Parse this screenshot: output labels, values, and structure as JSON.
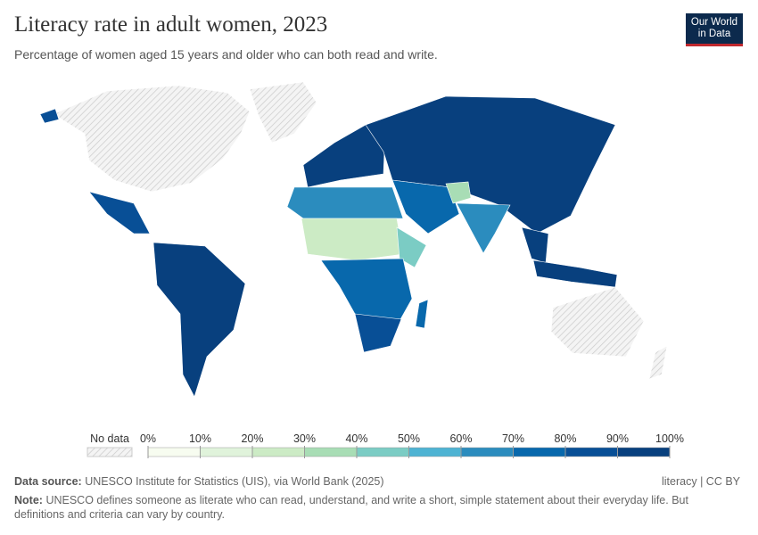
{
  "header": {
    "title": "Literacy rate in adult women, 2023",
    "subtitle": "Percentage of women aged 15 years and older who can both read and write."
  },
  "logo": [
    "Our World",
    "in Data"
  ],
  "legend": {
    "no_data": "No data",
    "ticks": [
      {
        "value": 0,
        "label": "0%"
      },
      {
        "value": 10,
        "label": "10%"
      },
      {
        "value": 20,
        "label": "20%"
      },
      {
        "value": 30,
        "label": "30%"
      },
      {
        "value": 40,
        "label": "40%"
      },
      {
        "value": 50,
        "label": "50%"
      },
      {
        "value": 60,
        "label": "60%"
      },
      {
        "value": 70,
        "label": "70%"
      },
      {
        "value": 80,
        "label": "80%"
      },
      {
        "value": 90,
        "label": "90%"
      },
      {
        "value": 100,
        "label": "100%"
      }
    ],
    "colors": [
      "#f7fcf0",
      "#e0f3db",
      "#ccebc5",
      "#a8ddb5",
      "#7bccc4",
      "#4eb3d3",
      "#2b8cbe",
      "#0868ac",
      "#084f96",
      "#08407e"
    ]
  },
  "footer": {
    "source_label": "Data source:",
    "source": "UNESCO Institute for Statistics (UIS), via World Bank (2025)",
    "right": "literacy | CC BY",
    "note_label": "Note:",
    "note": "UNESCO defines someone as literate who can read, understand, and write a short, simple statement about their everyday life. But definitions and criteria can vary by country."
  }
}
